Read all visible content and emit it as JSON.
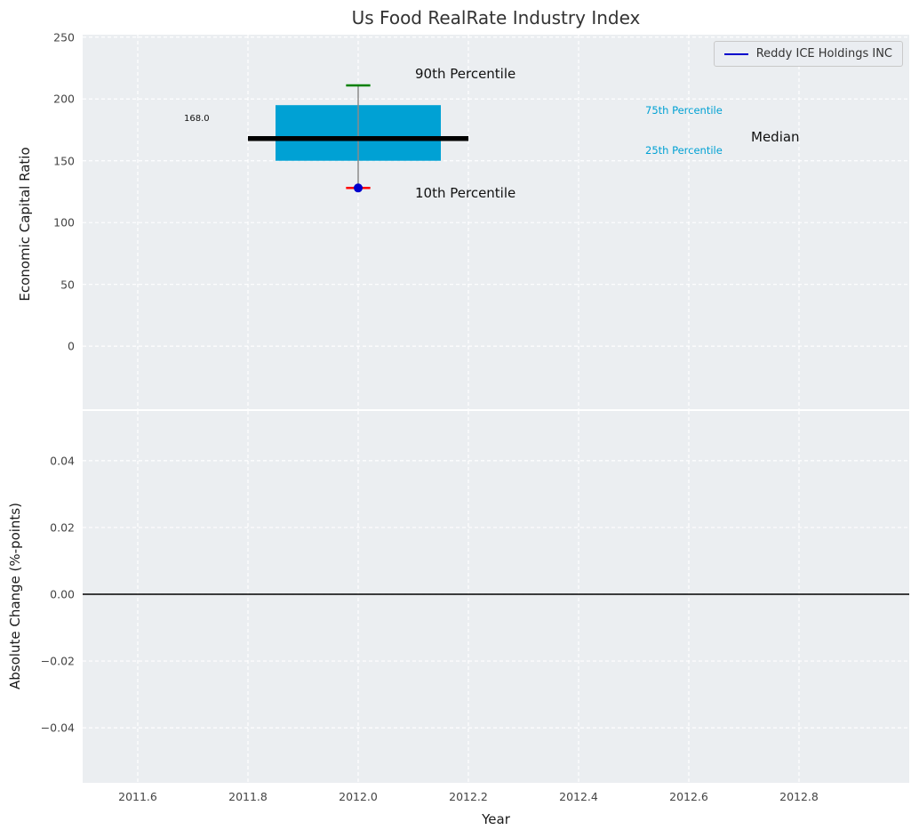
{
  "figure": {
    "title": "Us Food RealRate Industry Index",
    "xlabel": "Year",
    "top_ylabel": "Economic Capital Ratio",
    "bottom_ylabel": "Absolute Change (%-points)"
  },
  "legend": {
    "label": "Reddy ICE Holdings INC",
    "line_color": "#0000cc",
    "position": "upper right"
  },
  "annotations": {
    "p90": "90th Percentile",
    "p10": "10th Percentile",
    "p75": "75th Percentile",
    "p25": "25th Percentile",
    "median": "Median",
    "median_value": "168.0"
  },
  "colors": {
    "plot_bg": "#ebeef1",
    "grid": "#ffffff",
    "box_fill": "#00a1d4",
    "median_line": "#000000",
    "whisker": "#8a8a8a",
    "p90_cap": "#008000",
    "p10_cap": "#ff0000",
    "company_marker": "#0000cc",
    "zero_line": "#000000",
    "percentile_text": "#00a1d4"
  },
  "chart_data": [
    {
      "type": "box",
      "title": "Us Food RealRate Industry Index",
      "xlabel": "Year",
      "ylabel": "Economic Capital Ratio",
      "x": 2012.0,
      "box": {
        "median": 168.0,
        "q25": 150,
        "q75": 195,
        "p10": 128,
        "p90": 211,
        "box_halfwidth": 0.15,
        "median_halfwidth": 0.2,
        "cap_halfwidth": 0.022
      },
      "company_point": {
        "name": "Reddy ICE Holdings INC",
        "x": 2012.0,
        "y": 128
      },
      "xlim": [
        2011.5,
        2013.0
      ],
      "ylim": [
        -51,
        252
      ],
      "xticks": [
        2011.6,
        2011.8,
        2012.0,
        2012.2,
        2012.4,
        2012.6,
        2012.8
      ],
      "xtick_labels": [
        "2011.6",
        "2011.8",
        "2012.0",
        "2012.2",
        "2012.4",
        "2012.6",
        "2012.8"
      ],
      "yticks": [
        250,
        200,
        150,
        100,
        50,
        0
      ],
      "ytick_labels": [
        "250",
        "200",
        "150",
        "100",
        "50",
        "0"
      ],
      "grid": true,
      "legend_entries": [
        "Reddy ICE Holdings INC"
      ],
      "legend_position": "upper right"
    },
    {
      "type": "line",
      "title": "",
      "xlabel": "Year",
      "ylabel": "Absolute Change (%-points)",
      "series": [],
      "zero_line": 0.0,
      "xlim": [
        2011.5,
        2013.0
      ],
      "ylim": [
        -0.0565,
        0.0549
      ],
      "yticks": [
        0.04,
        0.02,
        0.0,
        -0.02,
        -0.04
      ],
      "ytick_labels": [
        "0.04",
        "0.02",
        "0.00",
        "−0.02",
        "−0.04"
      ],
      "grid": true
    }
  ]
}
